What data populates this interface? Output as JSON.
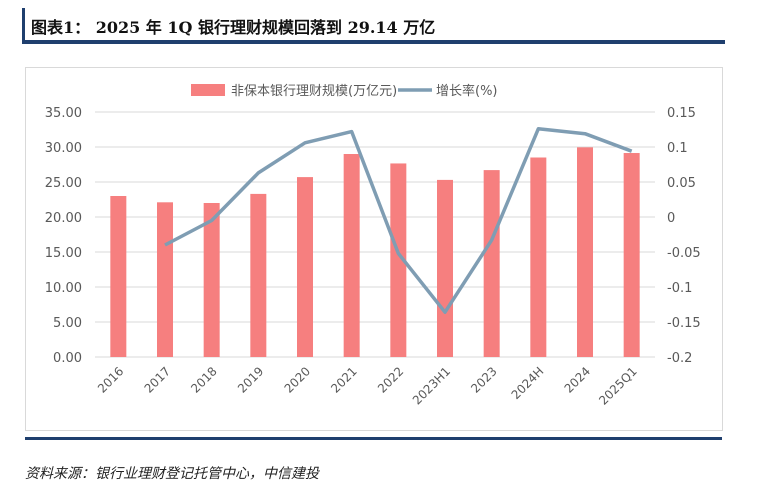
{
  "title": "图表1： 2025 年 1Q 银行理财规模回落到 29.14 万亿",
  "source": "资料来源：银行业理财登记托管中心，中信建投",
  "chart_data": {
    "type": "bar+line",
    "categories": [
      "2016",
      "2017",
      "2018",
      "2019",
      "2020",
      "2021",
      "2022",
      "2023H1",
      "2023",
      "2024H",
      "2024",
      "2025Q1"
    ],
    "series": [
      {
        "name": "非保本银行理财规模(万亿元)",
        "type": "bar",
        "axis": "left",
        "color": "#f67f7f",
        "values": [
          23.0,
          22.1,
          22.0,
          23.3,
          25.7,
          29.0,
          27.65,
          25.3,
          26.7,
          28.5,
          29.95,
          29.14
        ]
      },
      {
        "name": "增长率(%)",
        "type": "line",
        "axis": "right",
        "color": "#7f9db3",
        "values": [
          null,
          -0.04,
          -0.005,
          0.063,
          0.106,
          0.122,
          -0.052,
          -0.136,
          -0.033,
          0.126,
          0.119,
          0.094
        ]
      }
    ],
    "left_axis": {
      "ylim": [
        0,
        35
      ],
      "ticks": [
        "0.00",
        "5.00",
        "10.00",
        "15.00",
        "20.00",
        "25.00",
        "30.00",
        "35.00"
      ]
    },
    "right_axis": {
      "ylim": [
        -0.2,
        0.15
      ],
      "ticks": [
        "-0.2",
        "-0.15",
        "-0.1",
        "-0.05",
        "0",
        "0.05",
        "0.1",
        "0.15"
      ]
    },
    "grid": true,
    "legend": "top"
  }
}
